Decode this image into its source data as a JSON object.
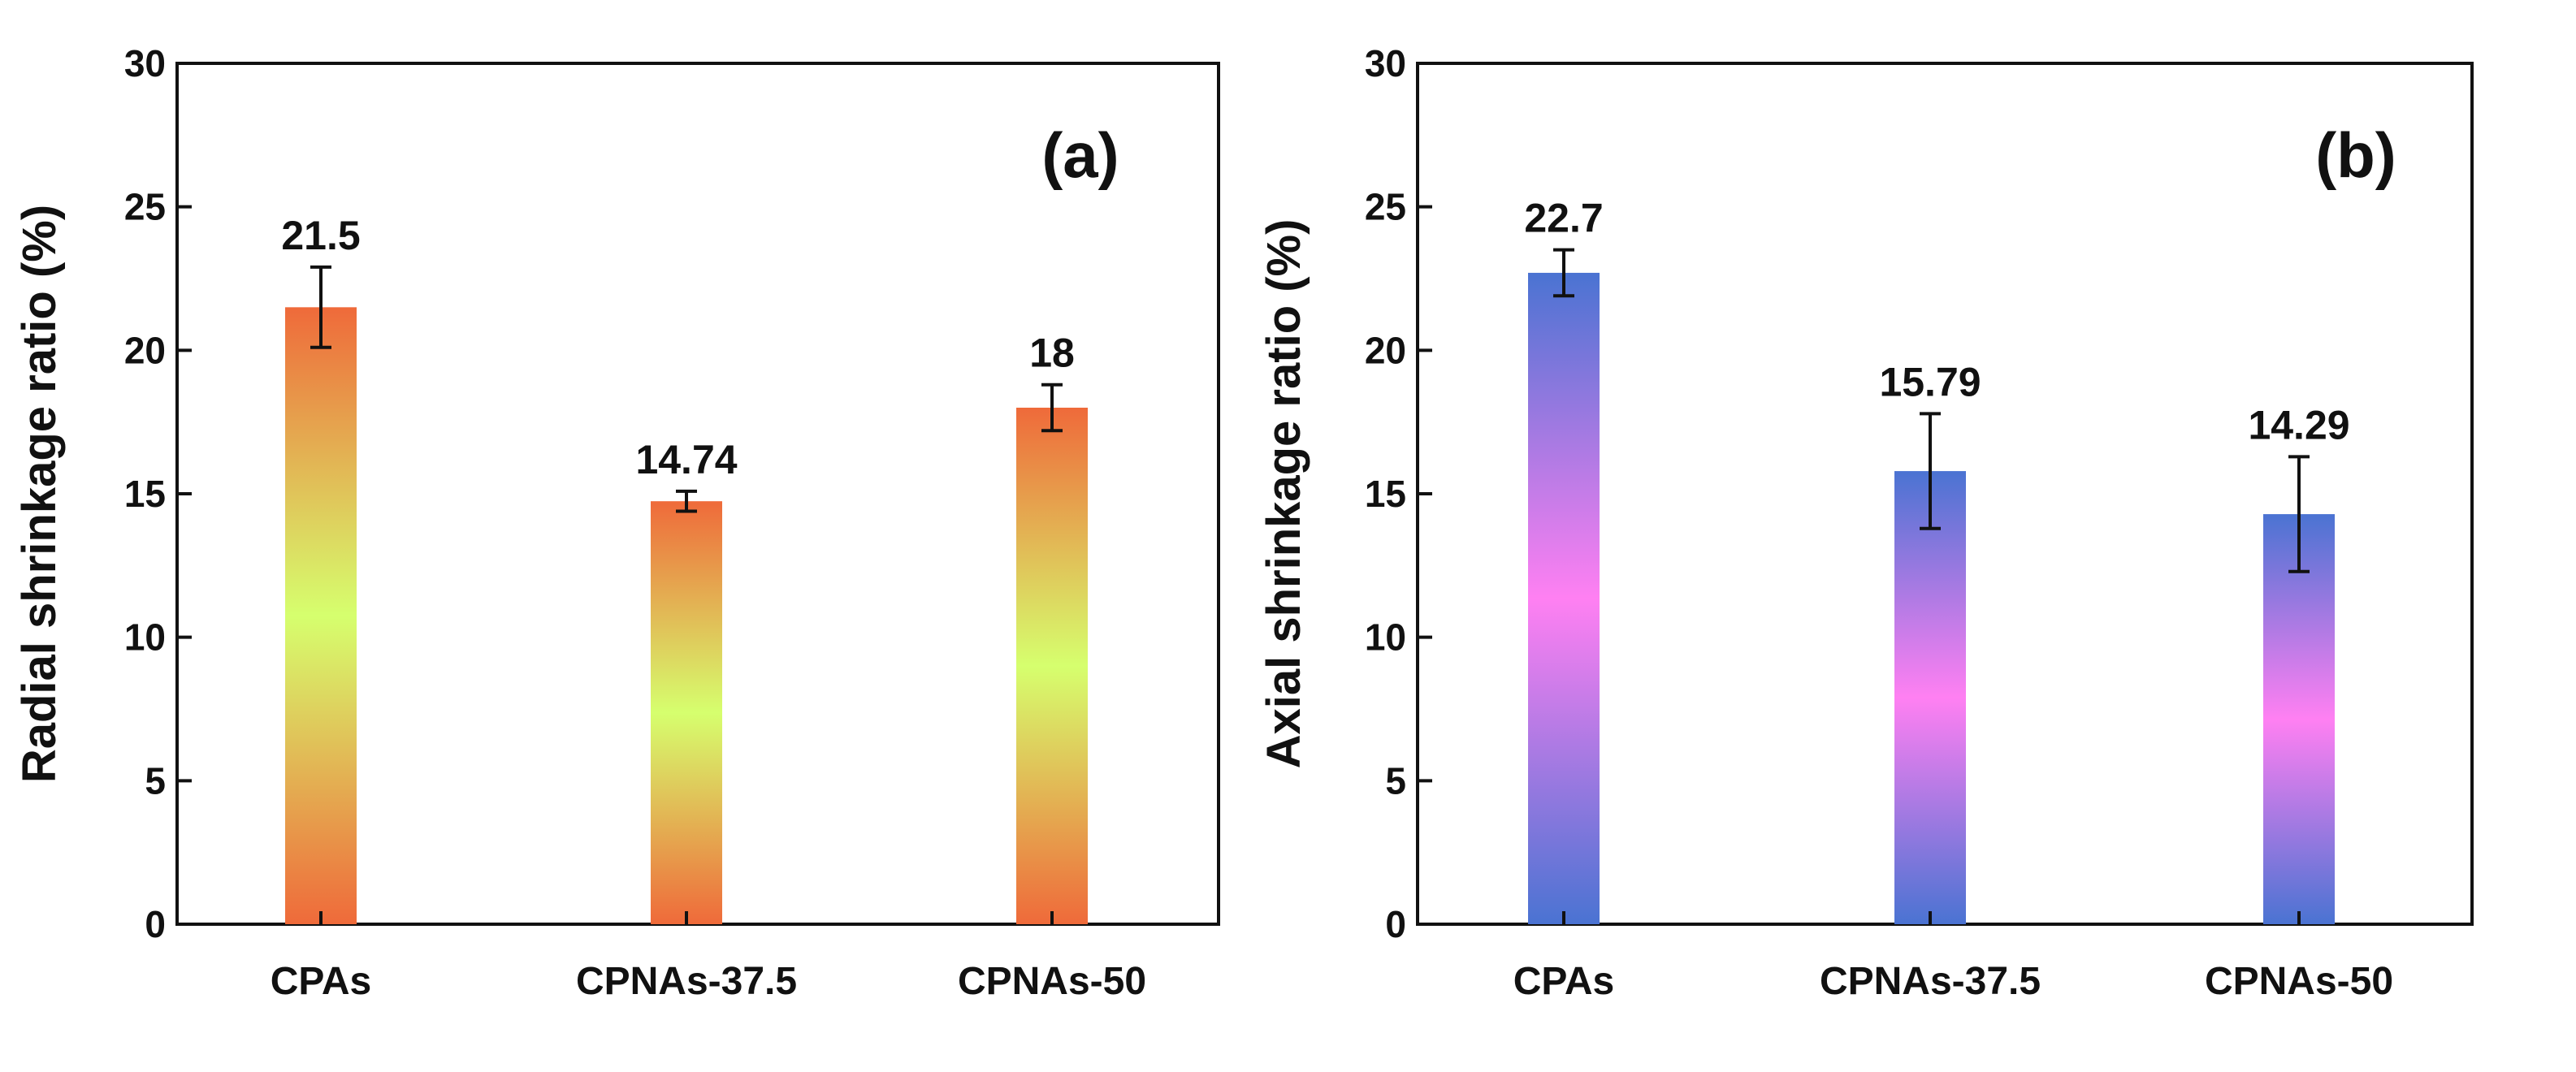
{
  "chart_data": [
    {
      "type": "bar",
      "panel_label": "(a)",
      "categories": [
        "CPAs",
        "CPNAs-37.5",
        "CPNAs-50"
      ],
      "values": [
        21.5,
        14.74,
        18
      ],
      "value_labels": [
        "21.5",
        "14.74",
        "18"
      ],
      "errors": [
        1.4,
        0.35,
        0.8
      ],
      "title": "",
      "xlabel": "",
      "ylabel": "Radial shrinkage ratio (%)",
      "ylim": [
        0,
        30
      ],
      "yticks": [
        0,
        5,
        10,
        15,
        20,
        25,
        30
      ],
      "grid": false,
      "gradient": {
        "edge": "#ef6a3a",
        "mid": "#d6ff6e"
      }
    },
    {
      "type": "bar",
      "panel_label": "(b)",
      "categories": [
        "CPAs",
        "CPNAs-37.5",
        "CPNAs-50"
      ],
      "values": [
        22.7,
        15.79,
        14.29
      ],
      "value_labels": [
        "22.7",
        "15.79",
        "14.29"
      ],
      "errors": [
        0.8,
        2.0,
        2.0
      ],
      "title": "",
      "xlabel": "",
      "ylabel": "Axial shrinkage ratio (%)",
      "ylim": [
        0,
        30
      ],
      "yticks": [
        0,
        5,
        10,
        15,
        20,
        25,
        30
      ],
      "grid": false,
      "gradient": {
        "edge": "#4a73d2",
        "mid": "#ff80f2"
      }
    }
  ]
}
